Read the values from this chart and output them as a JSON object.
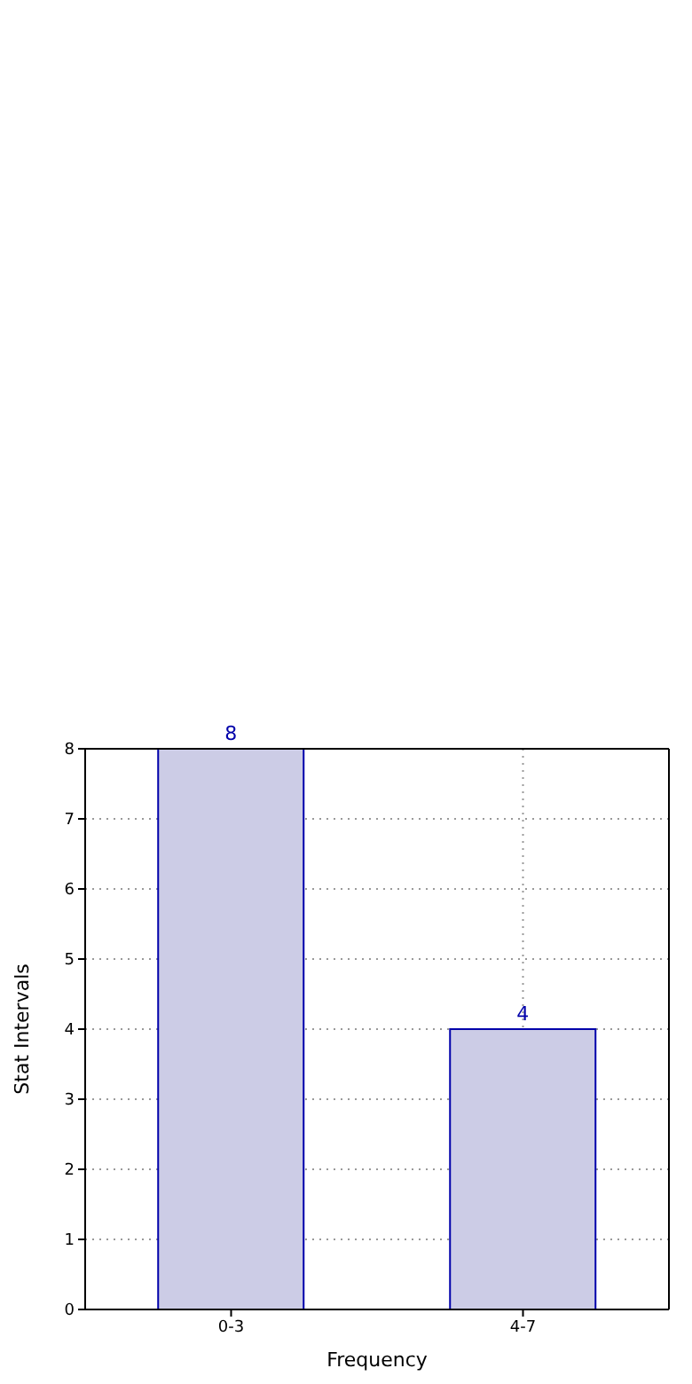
{
  "chart_data": {
    "type": "bar",
    "xlabel": "Frequency",
    "ylabel": "Stat Intervals",
    "categories": [
      "0-3",
      "4-7"
    ],
    "values": [
      8,
      4
    ],
    "color": "#cccce6",
    "ylim": [
      0,
      8
    ],
    "yticks": [
      0,
      1,
      2,
      3,
      4,
      5,
      6,
      7,
      8
    ],
    "grid": true,
    "data_labels": true
  }
}
